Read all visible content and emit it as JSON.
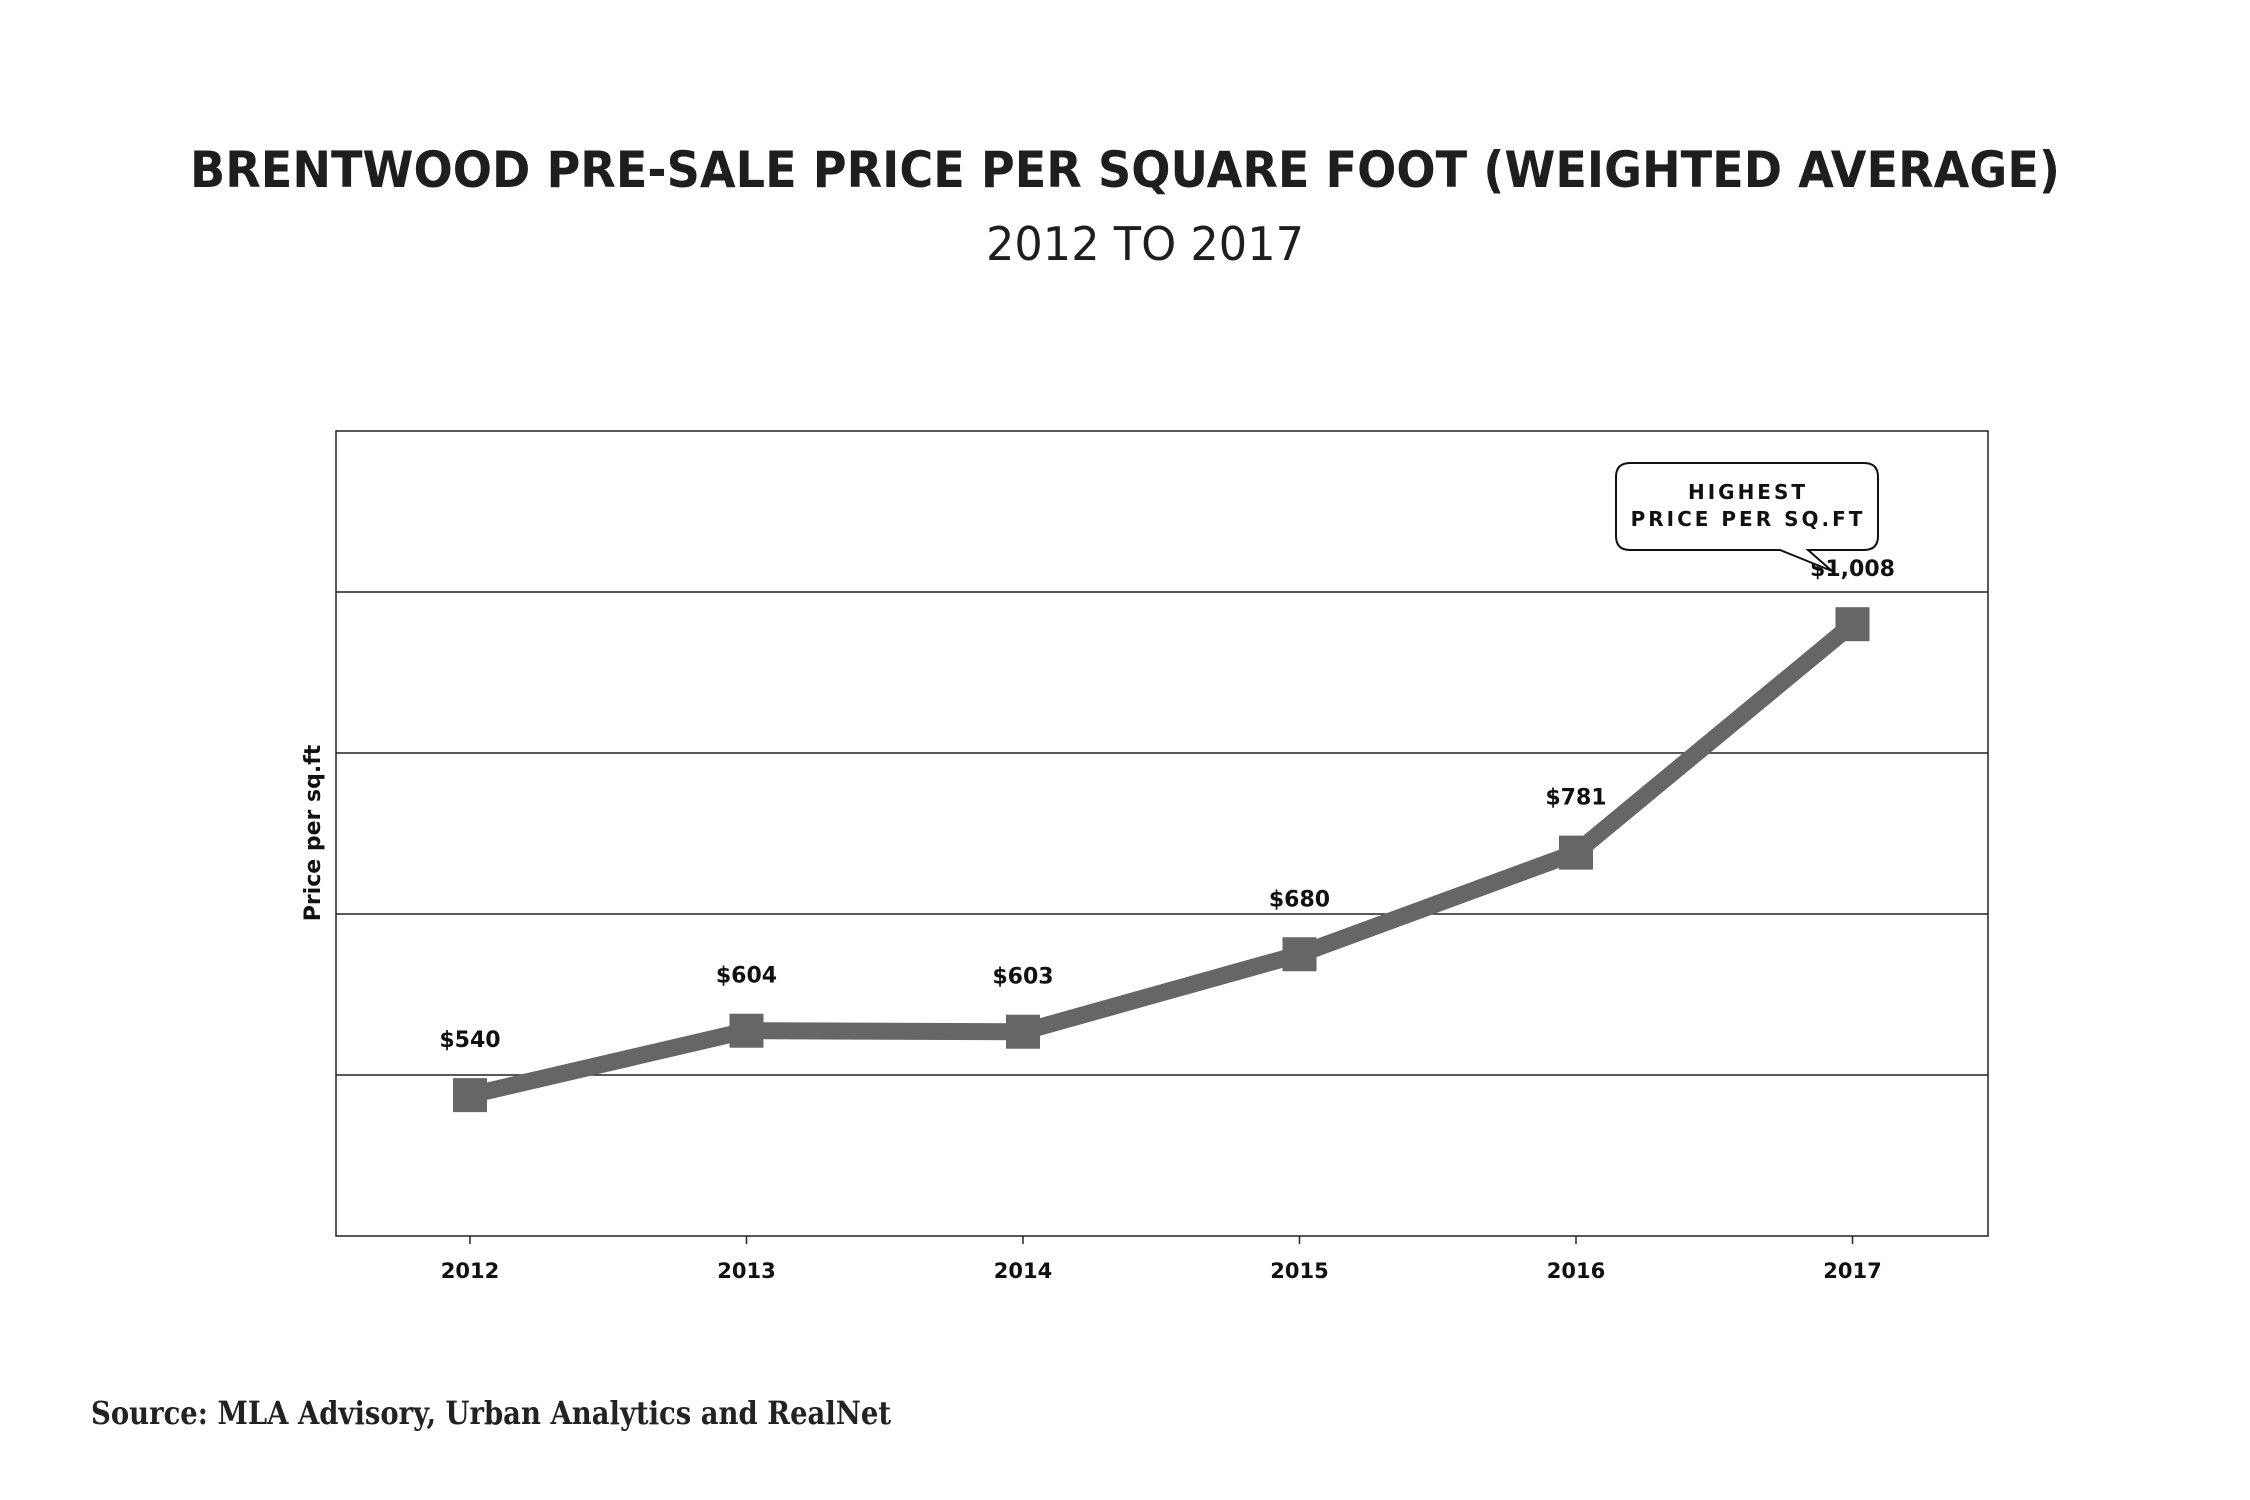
{
  "chart_data": {
    "type": "line",
    "title": "BRENTWOOD PRE-SALE PRICE PER SQUARE FOOT (WEIGHTED AVERAGE)",
    "subtitle": "2012 TO 2017",
    "xlabel": "",
    "ylabel": "Price per sq.ft",
    "categories": [
      "2012",
      "2013",
      "2014",
      "2015",
      "2016",
      "2017"
    ],
    "values": [
      540,
      604,
      603,
      680,
      781,
      1008
    ],
    "data_labels": [
      "$540",
      "$604",
      "$603",
      "$680",
      "$781",
      "$1,008"
    ],
    "ylim": [
      400,
      1200
    ],
    "y_gridlines": [
      560,
      720,
      880,
      1040
    ],
    "y_tick_labels_shown": false,
    "grid": true,
    "marker": "square",
    "line_color": "#666666",
    "annotation": {
      "lines": [
        "HIGHEST",
        "PRICE PER SQ.FT"
      ],
      "target": "2017"
    },
    "source": "Source: MLA Advisory, Urban Analytics and RealNet"
  }
}
